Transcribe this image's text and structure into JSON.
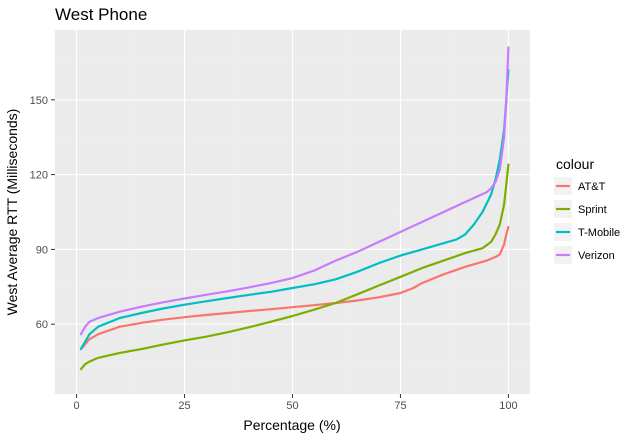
{
  "chart_data": {
    "type": "line",
    "title": "West Phone",
    "xlabel": "Percentage (%)",
    "ylabel": "West Average RTT (Milliseconds)",
    "xlim": [
      -5,
      105
    ],
    "ylim": [
      32,
      178
    ],
    "x_ticks": [
      0,
      25,
      50,
      75,
      100
    ],
    "y_ticks": [
      60,
      90,
      120,
      150
    ],
    "grid": true,
    "legend": {
      "title": "colour",
      "position": "right"
    },
    "series": [
      {
        "name": "AT&T",
        "color": "#F8766D",
        "points": [
          [
            1,
            50
          ],
          [
            3,
            54
          ],
          [
            5,
            56
          ],
          [
            10,
            59
          ],
          [
            15,
            60.5
          ],
          [
            20,
            61.8
          ],
          [
            25,
            62.8
          ],
          [
            30,
            63.7
          ],
          [
            35,
            64.5
          ],
          [
            40,
            65.3
          ],
          [
            45,
            66
          ],
          [
            50,
            66.8
          ],
          [
            55,
            67.6
          ],
          [
            60,
            68.5
          ],
          [
            65,
            69.5
          ],
          [
            70,
            70.8
          ],
          [
            75,
            72.5
          ],
          [
            78,
            74.5
          ],
          [
            80,
            76.5
          ],
          [
            85,
            80
          ],
          [
            90,
            83
          ],
          [
            95,
            85.5
          ],
          [
            97,
            87
          ],
          [
            98,
            88
          ],
          [
            99,
            92
          ],
          [
            99.5,
            96
          ],
          [
            100,
            99
          ]
        ]
      },
      {
        "name": "Sprint",
        "color": "#7CAE00",
        "points": [
          [
            1,
            42
          ],
          [
            2,
            44
          ],
          [
            3,
            45
          ],
          [
            5,
            46.5
          ],
          [
            10,
            48.5
          ],
          [
            15,
            50
          ],
          [
            20,
            51.8
          ],
          [
            25,
            53.5
          ],
          [
            30,
            55
          ],
          [
            35,
            56.8
          ],
          [
            40,
            58.8
          ],
          [
            45,
            61
          ],
          [
            50,
            63.3
          ],
          [
            55,
            65.8
          ],
          [
            60,
            68.5
          ],
          [
            65,
            72
          ],
          [
            70,
            75.5
          ],
          [
            75,
            79
          ],
          [
            80,
            82.5
          ],
          [
            85,
            85.5
          ],
          [
            90,
            88.5
          ],
          [
            94,
            90.5
          ],
          [
            96,
            93
          ],
          [
            97,
            96
          ],
          [
            98,
            100
          ],
          [
            99,
            108
          ],
          [
            99.5,
            116
          ],
          [
            100,
            124
          ]
        ]
      },
      {
        "name": "T-Mobile",
        "color": "#00BFC4",
        "points": [
          [
            1,
            50
          ],
          [
            2,
            53
          ],
          [
            3,
            56
          ],
          [
            5,
            59
          ],
          [
            10,
            62.5
          ],
          [
            15,
            64.5
          ],
          [
            20,
            66.3
          ],
          [
            25,
            67.8
          ],
          [
            30,
            69.2
          ],
          [
            35,
            70.5
          ],
          [
            40,
            71.8
          ],
          [
            45,
            73
          ],
          [
            50,
            74.5
          ],
          [
            55,
            76
          ],
          [
            60,
            78
          ],
          [
            65,
            81
          ],
          [
            70,
            84.5
          ],
          [
            75,
            87.5
          ],
          [
            80,
            90
          ],
          [
            85,
            92.5
          ],
          [
            88,
            94
          ],
          [
            90,
            96
          ],
          [
            92,
            100
          ],
          [
            94,
            105
          ],
          [
            96,
            112
          ],
          [
            97,
            118
          ],
          [
            98,
            126
          ],
          [
            99,
            138
          ],
          [
            99.5,
            150
          ],
          [
            100,
            162
          ]
        ]
      },
      {
        "name": "Verizon",
        "color": "#C77CFF",
        "points": [
          [
            1,
            56
          ],
          [
            2,
            59
          ],
          [
            3,
            61
          ],
          [
            5,
            62.5
          ],
          [
            10,
            65
          ],
          [
            15,
            67
          ],
          [
            20,
            68.8
          ],
          [
            25,
            70.3
          ],
          [
            30,
            71.8
          ],
          [
            35,
            73.2
          ],
          [
            40,
            74.8
          ],
          [
            45,
            76.5
          ],
          [
            50,
            78.5
          ],
          [
            55,
            81.5
          ],
          [
            60,
            85.5
          ],
          [
            65,
            89
          ],
          [
            70,
            93
          ],
          [
            75,
            97
          ],
          [
            80,
            101
          ],
          [
            85,
            105
          ],
          [
            90,
            109
          ],
          [
            95,
            113
          ],
          [
            96,
            114.5
          ],
          [
            97,
            117
          ],
          [
            98,
            122
          ],
          [
            99,
            135
          ],
          [
            99.5,
            150
          ],
          [
            100,
            171
          ]
        ]
      }
    ]
  }
}
